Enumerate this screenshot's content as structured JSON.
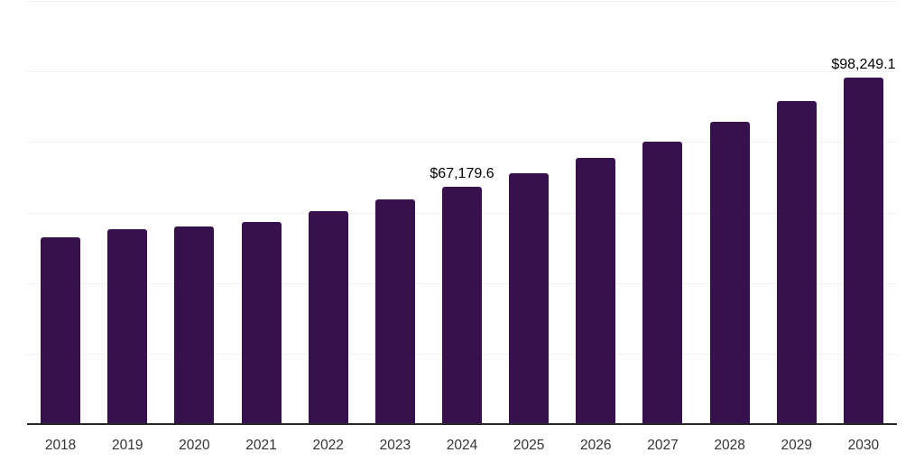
{
  "chart_data": {
    "type": "bar",
    "title": "",
    "xlabel": "",
    "ylabel": "",
    "categories": [
      "2018",
      "2019",
      "2020",
      "2021",
      "2022",
      "2023",
      "2024",
      "2025",
      "2026",
      "2027",
      "2028",
      "2029",
      "2030"
    ],
    "values": [
      53000,
      55300,
      56100,
      57400,
      60500,
      63800,
      67179.6,
      71200,
      75600,
      80200,
      85600,
      91700,
      98249.1
    ],
    "data_labels": [
      "",
      "",
      "",
      "",
      "",
      "",
      "$67,179.6",
      "",
      "",
      "",
      "",
      "",
      "$98,249.1"
    ],
    "ylim": [
      0,
      120000
    ],
    "grid_interval": 20000,
    "grid": true,
    "legend": false,
    "y_axis_labels_visible": false,
    "colors": {
      "bar": "#37114e",
      "gridline": "#f2f2f2",
      "axis_line": "#262626",
      "tick_label": "#333333",
      "data_label": "#000000",
      "background": "#ffffff"
    }
  }
}
